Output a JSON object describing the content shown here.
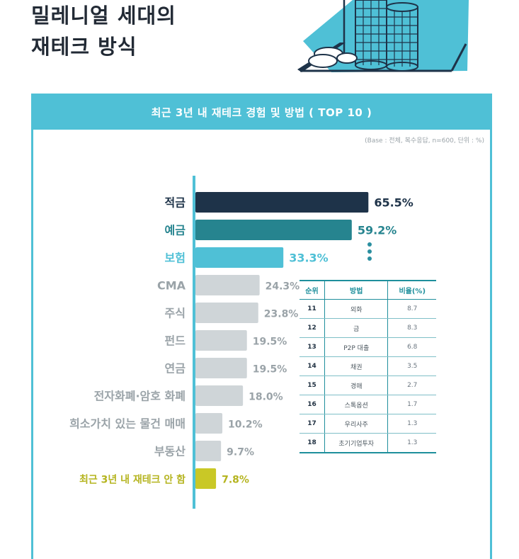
{
  "page": {
    "title_line1": "밀레니얼 세대의",
    "title_line2": "재테크 방식"
  },
  "panel": {
    "header": "최근 3년 내 재테크 경험 및 방법 ( TOP 10 )",
    "base_note": "(Base : 전체, 복수응답, n=600, 단위 : %)"
  },
  "colors": {
    "accent": "#4fc0d6",
    "navy": "#1e3349",
    "teal": "#26848f",
    "sky": "#4fc0d6",
    "gray": "#cfd5d8",
    "lime": "#c9c826"
  },
  "chart_data": {
    "type": "bar",
    "orientation": "horizontal",
    "title": "최근 3년 내 재테크 경험 및 방법 ( TOP 10 )",
    "xlim": [
      0,
      70
    ],
    "categories": [
      "적금",
      "예금",
      "보험",
      "CMA",
      "주식",
      "펀드",
      "연금",
      "전자화폐·암호 화폐",
      "희소가치 있는 물건 매매",
      "부동산",
      "최근 3년 내 재테크 안 함"
    ],
    "values": [
      65.5,
      59.2,
      33.3,
      24.3,
      23.8,
      19.5,
      19.5,
      18.0,
      10.2,
      9.7,
      7.8
    ],
    "value_labels": [
      "65.5%",
      "59.2%",
      "33.3%",
      "24.3%",
      "23.8%",
      "19.5%",
      "19.5%",
      "18.0%",
      "10.2%",
      "9.7%",
      "7.8%"
    ],
    "bar_colors": [
      "#1e3349",
      "#26848f",
      "#4fc0d6",
      "#cfd5d8",
      "#cfd5d8",
      "#cfd5d8",
      "#cfd5d8",
      "#cfd5d8",
      "#cfd5d8",
      "#cfd5d8",
      "#c9c826"
    ],
    "label_colors": [
      "#1e3349",
      "#26848f",
      "#4fc0d6",
      "#9aa3a8",
      "#9aa3a8",
      "#9aa3a8",
      "#9aa3a8",
      "#9aa3a8",
      "#9aa3a8",
      "#9aa3a8",
      "#b5b41f"
    ]
  },
  "rank_table": {
    "headers": [
      "순위",
      "방법",
      "비율(%)"
    ],
    "rows": [
      {
        "rank": "11",
        "method": "외화",
        "value": "8.7"
      },
      {
        "rank": "12",
        "method": "금",
        "value": "8.3"
      },
      {
        "rank": "13",
        "method": "P2P 대출",
        "value": "6.8"
      },
      {
        "rank": "14",
        "method": "채권",
        "value": "3.5"
      },
      {
        "rank": "15",
        "method": "경매",
        "value": "2.7"
      },
      {
        "rank": "16",
        "method": "스톡옵션",
        "value": "1.7"
      },
      {
        "rank": "17",
        "method": "우리사주",
        "value": "1.3"
      },
      {
        "rank": "18",
        "method": "초기기업투자",
        "value": "1.3"
      }
    ]
  },
  "icons": {
    "hero": "coin-stacks-illustration",
    "more": "vertical-ellipsis-icon"
  }
}
